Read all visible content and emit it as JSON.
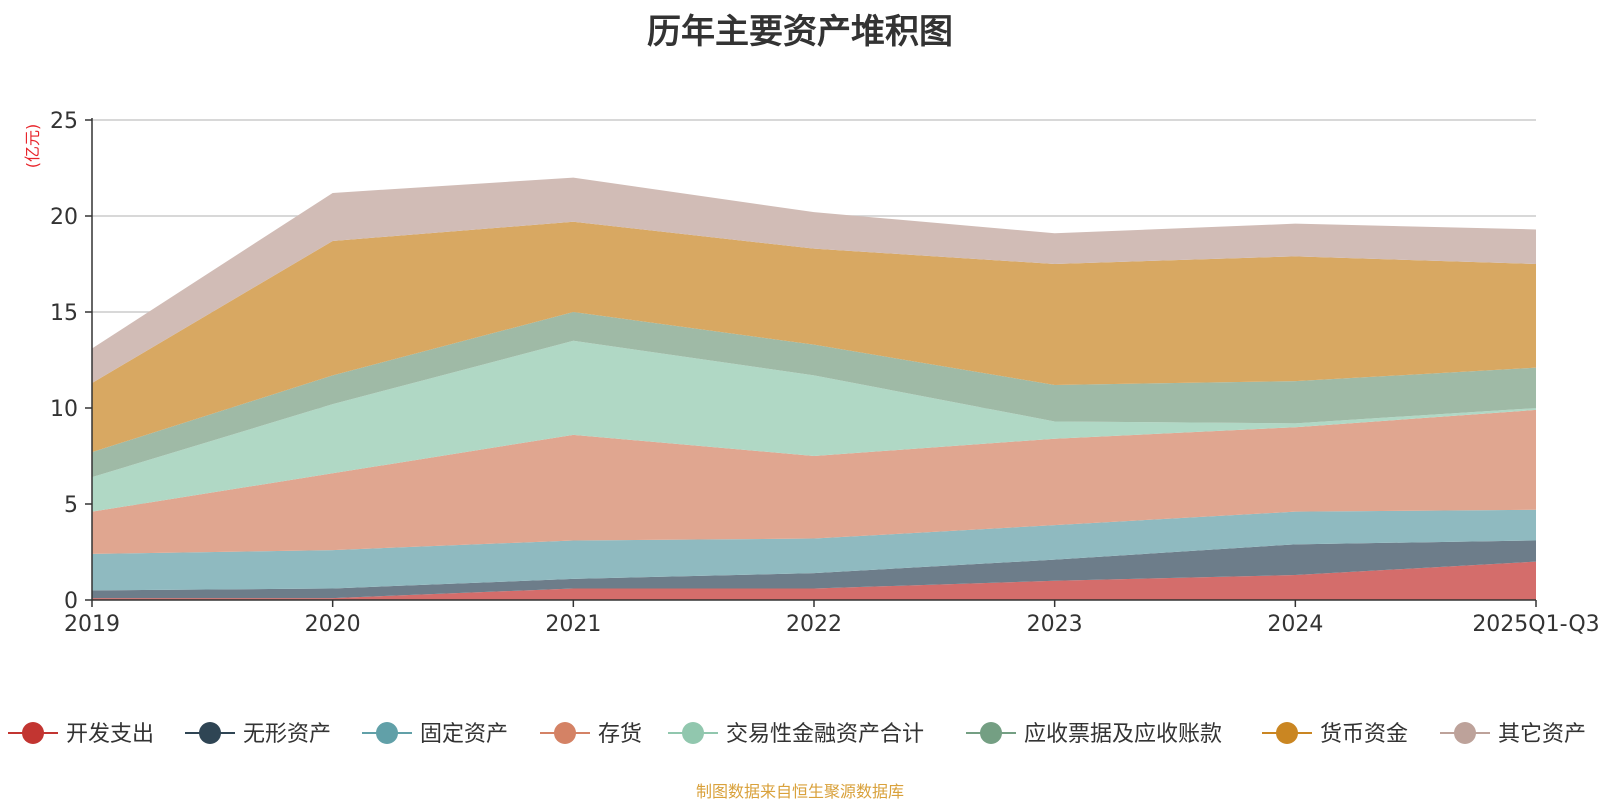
{
  "chart_data": {
    "type": "area",
    "stacked": true,
    "title": "历年主要资产堆积图",
    "ylabel": "(亿元)",
    "xlabel": "",
    "ylim": [
      0,
      25
    ],
    "yticks": [
      0,
      5,
      10,
      15,
      20,
      25
    ],
    "grid": true,
    "legend_position": "bottom",
    "categories": [
      "2019",
      "2020",
      "2021",
      "2022",
      "2023",
      "2024",
      "2025Q1-Q3"
    ],
    "series": [
      {
        "name": "开发支出",
        "color": "#c23531",
        "fill": "#d46d6b",
        "values": [
          0.1,
          0.1,
          0.6,
          0.6,
          1.0,
          1.3,
          2.0
        ]
      },
      {
        "name": "无形资产",
        "color": "#2f4554",
        "fill": "#6d7d8a",
        "values": [
          0.4,
          0.5,
          0.5,
          0.8,
          1.1,
          1.6,
          1.1
        ]
      },
      {
        "name": "固定资产",
        "color": "#61a0a8",
        "fill": "#8fbac0",
        "values": [
          1.9,
          2.0,
          2.0,
          1.8,
          1.8,
          1.7,
          1.6
        ]
      },
      {
        "name": "存货",
        "color": "#d48265",
        "fill": "#e0a690",
        "values": [
          2.2,
          4.0,
          5.5,
          4.3,
          4.5,
          4.4,
          5.2
        ]
      },
      {
        "name": "交易性金融资产合计",
        "color": "#91c7ae",
        "fill": "#b0d8c5",
        "values": [
          1.8,
          3.6,
          4.9,
          4.2,
          0.9,
          0.2,
          0.1
        ]
      },
      {
        "name": "应收票据及应收账款",
        "color": "#749f83",
        "fill": "#9fbaa6",
        "values": [
          1.3,
          1.5,
          1.5,
          1.6,
          1.9,
          2.2,
          2.1
        ]
      },
      {
        "name": "货币资金",
        "color": "#ca8622",
        "fill": "#d8a862",
        "values": [
          3.6,
          7.0,
          4.7,
          5.0,
          6.3,
          6.5,
          5.4
        ]
      },
      {
        "name": "其它资产",
        "color": "#bda29a",
        "fill": "#d1bcb6",
        "values": [
          1.8,
          2.5,
          2.3,
          1.9,
          1.6,
          1.7,
          1.8
        ]
      }
    ]
  },
  "source_note": "制图数据来自恒生聚源数据库"
}
